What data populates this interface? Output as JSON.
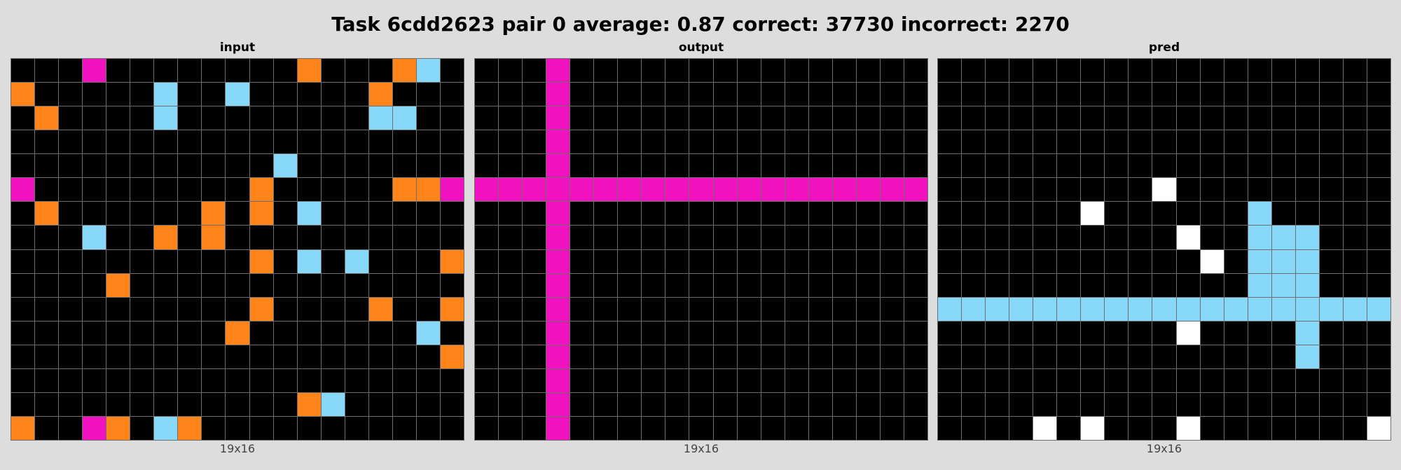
{
  "title": "Task 6cdd2623 pair 0 average: 0.87 correct: 37730 incorrect: 2270",
  "palette": {
    "0": "#000000",
    "1": "#f012be",
    "2": "#ff851b",
    "3": "#87d8f9",
    "4": "#ffffff"
  },
  "panels": [
    {
      "label": "input",
      "caption": "19x16",
      "grid": [
        [
          0,
          0,
          0,
          1,
          0,
          0,
          0,
          0,
          0,
          0,
          0,
          0,
          2,
          0,
          0,
          0,
          2,
          3,
          0
        ],
        [
          2,
          0,
          0,
          0,
          0,
          0,
          3,
          0,
          0,
          3,
          0,
          0,
          0,
          0,
          0,
          2,
          0,
          0,
          0
        ],
        [
          0,
          2,
          0,
          0,
          0,
          0,
          3,
          0,
          0,
          0,
          0,
          0,
          0,
          0,
          0,
          3,
          3,
          0,
          0
        ],
        [
          0,
          0,
          0,
          0,
          0,
          0,
          0,
          0,
          0,
          0,
          0,
          0,
          0,
          0,
          0,
          0,
          0,
          0,
          0
        ],
        [
          0,
          0,
          0,
          0,
          0,
          0,
          0,
          0,
          0,
          0,
          0,
          3,
          0,
          0,
          0,
          0,
          0,
          0,
          0
        ],
        [
          1,
          0,
          0,
          0,
          0,
          0,
          0,
          0,
          0,
          0,
          2,
          0,
          0,
          0,
          0,
          0,
          2,
          2,
          1
        ],
        [
          0,
          2,
          0,
          0,
          0,
          0,
          0,
          0,
          2,
          0,
          2,
          0,
          3,
          0,
          0,
          0,
          0,
          0,
          0
        ],
        [
          0,
          0,
          0,
          3,
          0,
          0,
          2,
          0,
          2,
          0,
          0,
          0,
          0,
          0,
          0,
          0,
          0,
          0,
          0
        ],
        [
          0,
          0,
          0,
          0,
          0,
          0,
          0,
          0,
          0,
          0,
          2,
          0,
          3,
          0,
          3,
          0,
          0,
          0,
          2
        ],
        [
          0,
          0,
          0,
          0,
          2,
          0,
          0,
          0,
          0,
          0,
          0,
          0,
          0,
          0,
          0,
          0,
          0,
          0,
          0
        ],
        [
          0,
          0,
          0,
          0,
          0,
          0,
          0,
          0,
          0,
          0,
          2,
          0,
          0,
          0,
          0,
          2,
          0,
          0,
          2
        ],
        [
          0,
          0,
          0,
          0,
          0,
          0,
          0,
          0,
          0,
          2,
          0,
          0,
          0,
          0,
          0,
          0,
          0,
          3,
          0
        ],
        [
          0,
          0,
          0,
          0,
          0,
          0,
          0,
          0,
          0,
          0,
          0,
          0,
          0,
          0,
          0,
          0,
          0,
          0,
          2
        ],
        [
          0,
          0,
          0,
          0,
          0,
          0,
          0,
          0,
          0,
          0,
          0,
          0,
          0,
          0,
          0,
          0,
          0,
          0,
          0
        ],
        [
          0,
          0,
          0,
          0,
          0,
          0,
          0,
          0,
          0,
          0,
          0,
          0,
          2,
          3,
          0,
          0,
          0,
          0,
          0
        ],
        [
          2,
          0,
          0,
          1,
          2,
          0,
          3,
          2,
          0,
          0,
          0,
          0,
          0,
          0,
          0,
          0,
          0,
          0,
          0
        ]
      ]
    },
    {
      "label": "output",
      "caption": "19x16",
      "grid": [
        [
          0,
          0,
          0,
          1,
          0,
          0,
          0,
          0,
          0,
          0,
          0,
          0,
          0,
          0,
          0,
          0,
          0,
          0,
          0
        ],
        [
          0,
          0,
          0,
          1,
          0,
          0,
          0,
          0,
          0,
          0,
          0,
          0,
          0,
          0,
          0,
          0,
          0,
          0,
          0
        ],
        [
          0,
          0,
          0,
          1,
          0,
          0,
          0,
          0,
          0,
          0,
          0,
          0,
          0,
          0,
          0,
          0,
          0,
          0,
          0
        ],
        [
          0,
          0,
          0,
          1,
          0,
          0,
          0,
          0,
          0,
          0,
          0,
          0,
          0,
          0,
          0,
          0,
          0,
          0,
          0
        ],
        [
          0,
          0,
          0,
          1,
          0,
          0,
          0,
          0,
          0,
          0,
          0,
          0,
          0,
          0,
          0,
          0,
          0,
          0,
          0
        ],
        [
          1,
          1,
          1,
          1,
          1,
          1,
          1,
          1,
          1,
          1,
          1,
          1,
          1,
          1,
          1,
          1,
          1,
          1,
          1
        ],
        [
          0,
          0,
          0,
          1,
          0,
          0,
          0,
          0,
          0,
          0,
          0,
          0,
          0,
          0,
          0,
          0,
          0,
          0,
          0
        ],
        [
          0,
          0,
          0,
          1,
          0,
          0,
          0,
          0,
          0,
          0,
          0,
          0,
          0,
          0,
          0,
          0,
          0,
          0,
          0
        ],
        [
          0,
          0,
          0,
          1,
          0,
          0,
          0,
          0,
          0,
          0,
          0,
          0,
          0,
          0,
          0,
          0,
          0,
          0,
          0
        ],
        [
          0,
          0,
          0,
          1,
          0,
          0,
          0,
          0,
          0,
          0,
          0,
          0,
          0,
          0,
          0,
          0,
          0,
          0,
          0
        ],
        [
          0,
          0,
          0,
          1,
          0,
          0,
          0,
          0,
          0,
          0,
          0,
          0,
          0,
          0,
          0,
          0,
          0,
          0,
          0
        ],
        [
          0,
          0,
          0,
          1,
          0,
          0,
          0,
          0,
          0,
          0,
          0,
          0,
          0,
          0,
          0,
          0,
          0,
          0,
          0
        ],
        [
          0,
          0,
          0,
          1,
          0,
          0,
          0,
          0,
          0,
          0,
          0,
          0,
          0,
          0,
          0,
          0,
          0,
          0,
          0
        ],
        [
          0,
          0,
          0,
          1,
          0,
          0,
          0,
          0,
          0,
          0,
          0,
          0,
          0,
          0,
          0,
          0,
          0,
          0,
          0
        ],
        [
          0,
          0,
          0,
          1,
          0,
          0,
          0,
          0,
          0,
          0,
          0,
          0,
          0,
          0,
          0,
          0,
          0,
          0,
          0
        ],
        [
          0,
          0,
          0,
          1,
          0,
          0,
          0,
          0,
          0,
          0,
          0,
          0,
          0,
          0,
          0,
          0,
          0,
          0,
          0
        ]
      ]
    },
    {
      "label": "pred",
      "caption": "19x16",
      "grid": [
        [
          0,
          0,
          0,
          0,
          0,
          0,
          0,
          0,
          0,
          0,
          0,
          0,
          0,
          0,
          0,
          0,
          0,
          0,
          0
        ],
        [
          0,
          0,
          0,
          0,
          0,
          0,
          0,
          0,
          0,
          0,
          0,
          0,
          0,
          0,
          0,
          0,
          0,
          0,
          0
        ],
        [
          0,
          0,
          0,
          0,
          0,
          0,
          0,
          0,
          0,
          0,
          0,
          0,
          0,
          0,
          0,
          0,
          0,
          0,
          0
        ],
        [
          0,
          0,
          0,
          0,
          0,
          0,
          0,
          0,
          0,
          0,
          0,
          0,
          0,
          0,
          0,
          0,
          0,
          0,
          0
        ],
        [
          0,
          0,
          0,
          0,
          0,
          0,
          0,
          0,
          0,
          0,
          0,
          0,
          0,
          0,
          0,
          0,
          0,
          0,
          0
        ],
        [
          0,
          0,
          0,
          0,
          0,
          0,
          0,
          0,
          0,
          4,
          0,
          0,
          0,
          0,
          0,
          0,
          0,
          0,
          0
        ],
        [
          0,
          0,
          0,
          0,
          0,
          0,
          4,
          0,
          0,
          0,
          0,
          0,
          0,
          3,
          0,
          0,
          0,
          0,
          0
        ],
        [
          0,
          0,
          0,
          0,
          0,
          0,
          0,
          0,
          0,
          0,
          4,
          0,
          0,
          3,
          3,
          3,
          0,
          0,
          0
        ],
        [
          0,
          0,
          0,
          0,
          0,
          0,
          0,
          0,
          0,
          0,
          0,
          4,
          0,
          3,
          3,
          3,
          0,
          0,
          0
        ],
        [
          0,
          0,
          0,
          0,
          0,
          0,
          0,
          0,
          0,
          0,
          0,
          0,
          0,
          3,
          3,
          3,
          0,
          0,
          0
        ],
        [
          3,
          3,
          3,
          3,
          3,
          3,
          3,
          3,
          3,
          3,
          3,
          3,
          3,
          3,
          3,
          3,
          3,
          3,
          3
        ],
        [
          0,
          0,
          0,
          0,
          0,
          0,
          0,
          0,
          0,
          0,
          4,
          0,
          0,
          0,
          0,
          3,
          0,
          0,
          0
        ],
        [
          0,
          0,
          0,
          0,
          0,
          0,
          0,
          0,
          0,
          0,
          0,
          0,
          0,
          0,
          0,
          3,
          0,
          0,
          0
        ],
        [
          0,
          0,
          0,
          0,
          0,
          0,
          0,
          0,
          0,
          0,
          0,
          0,
          0,
          0,
          0,
          0,
          0,
          0,
          0
        ],
        [
          0,
          0,
          0,
          0,
          0,
          0,
          0,
          0,
          0,
          0,
          0,
          0,
          0,
          0,
          0,
          0,
          0,
          0,
          0
        ],
        [
          0,
          0,
          0,
          0,
          4,
          0,
          4,
          0,
          0,
          0,
          4,
          0,
          0,
          0,
          0,
          0,
          0,
          0,
          4
        ]
      ]
    }
  ]
}
